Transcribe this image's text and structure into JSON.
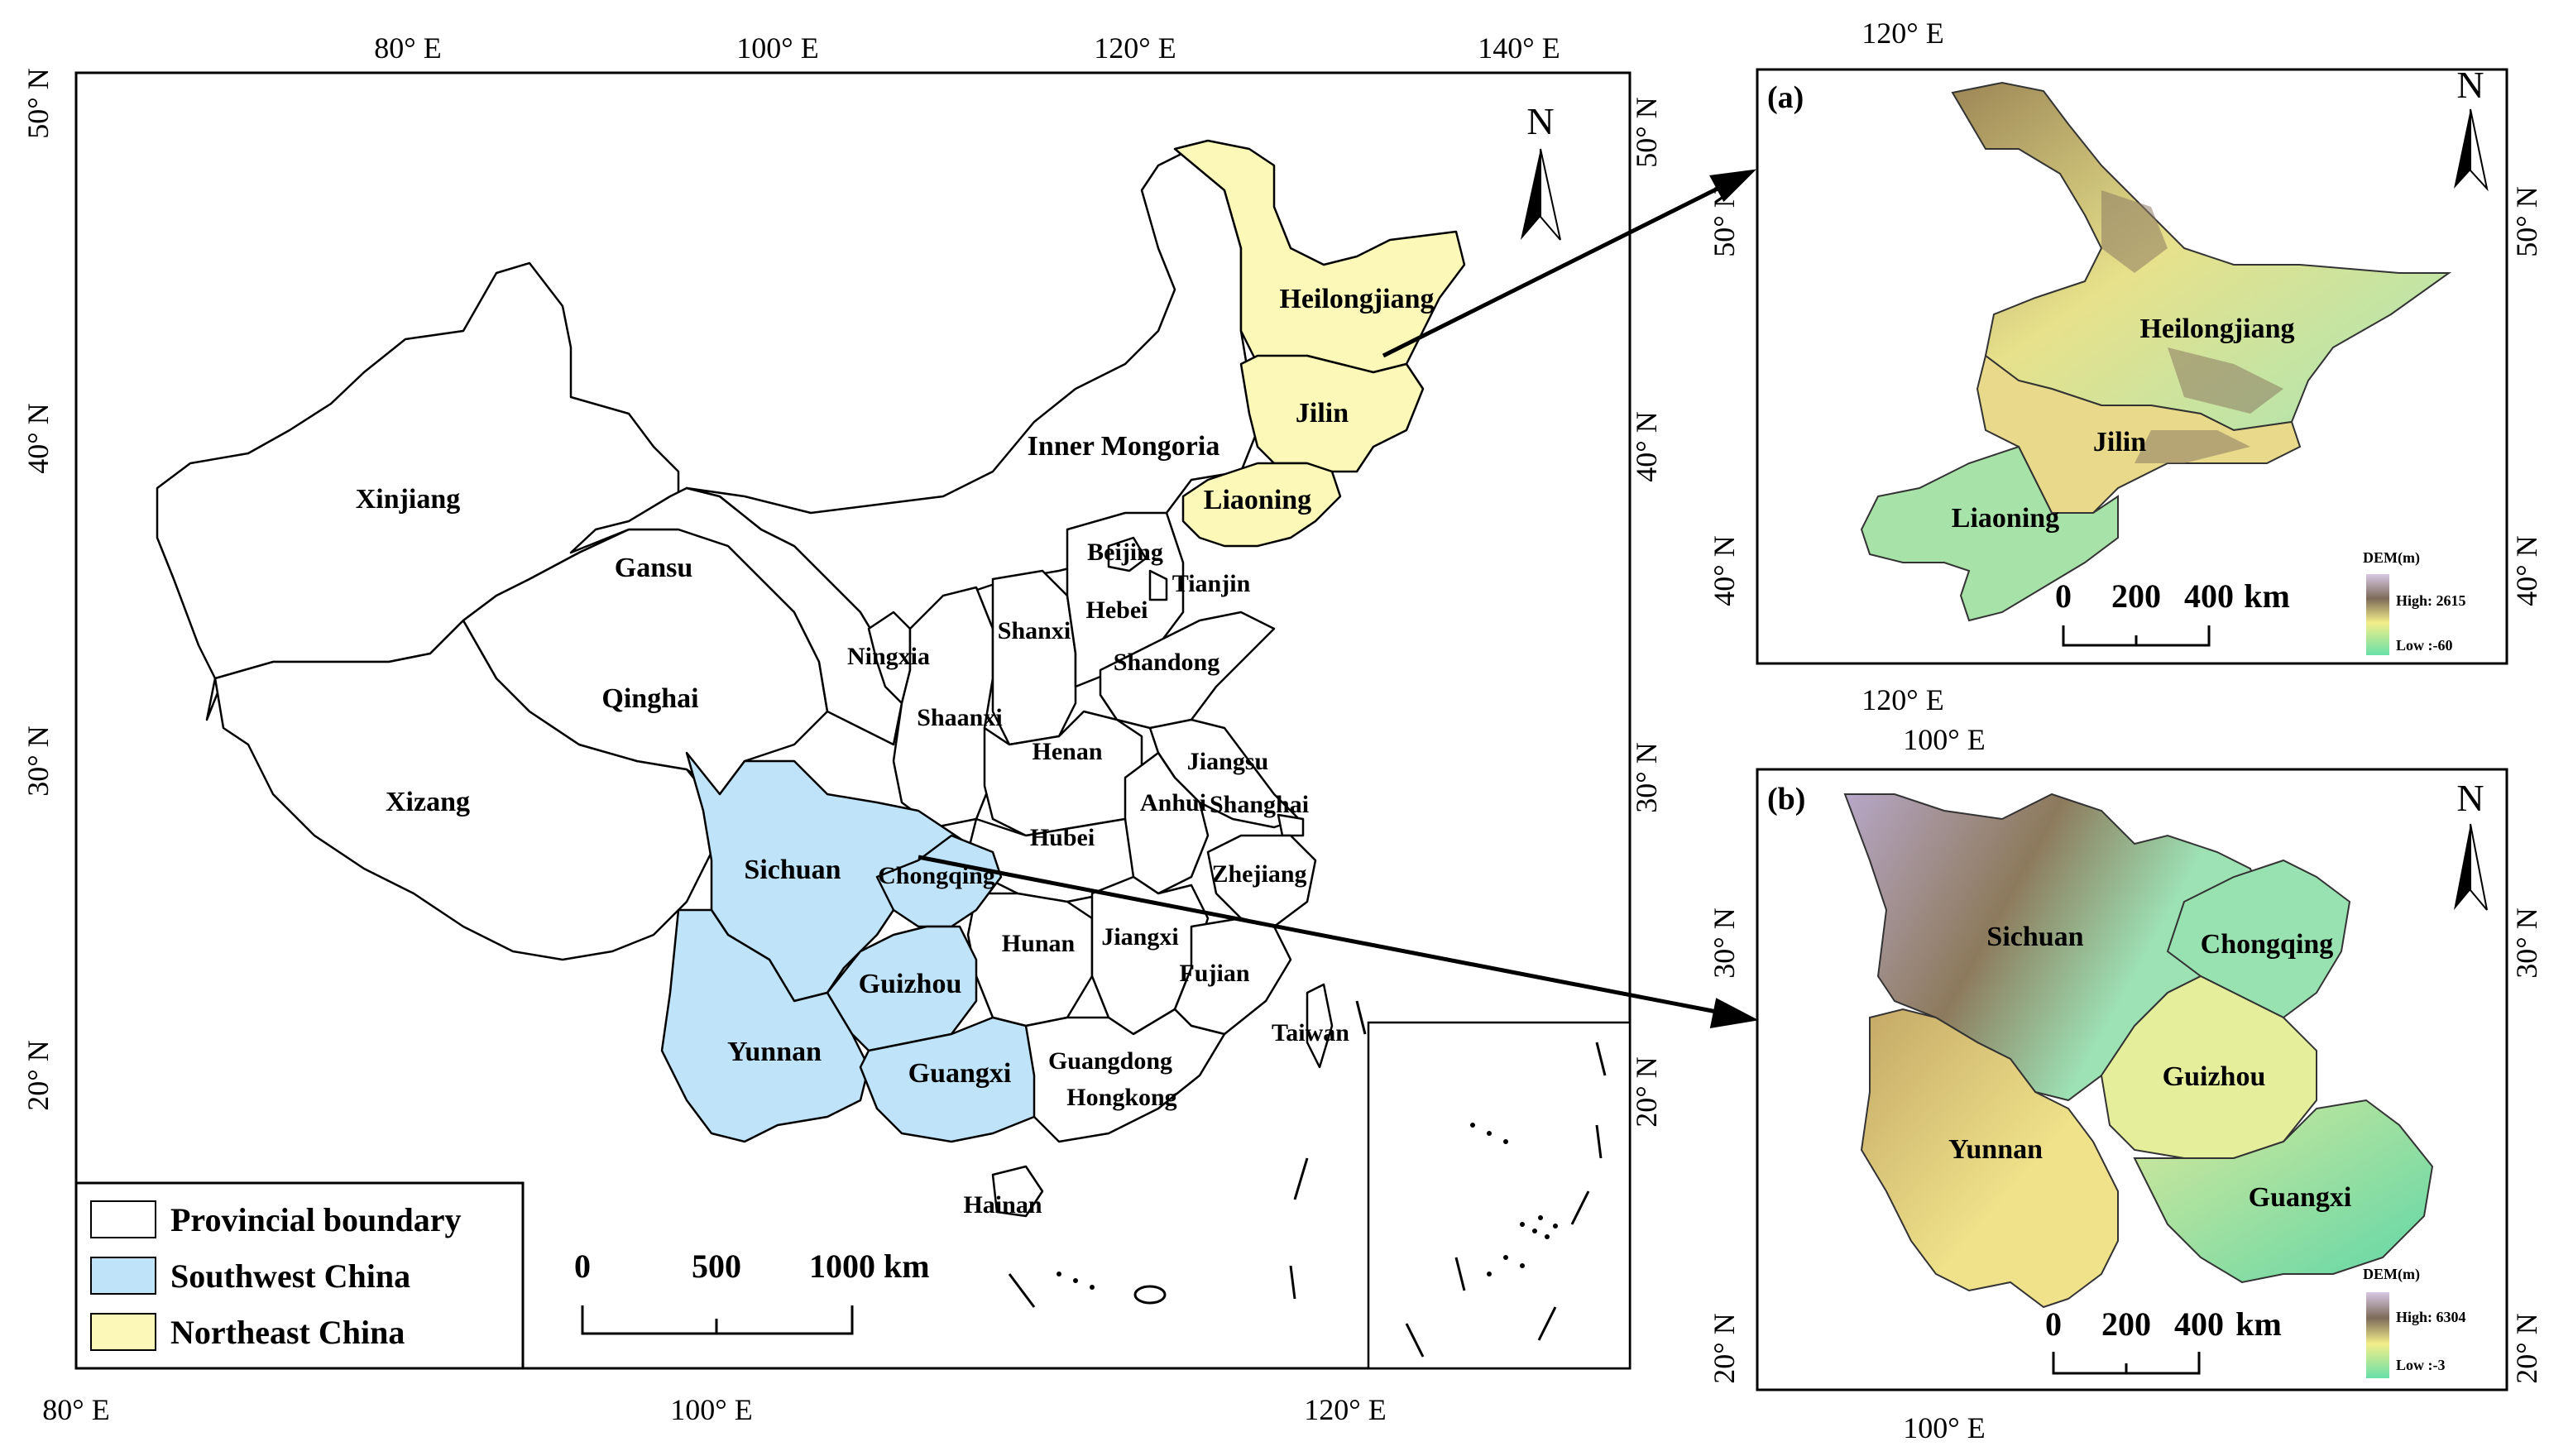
{
  "main_map": {
    "top_lon_ticks": [
      "80° E",
      "100° E",
      "120° E",
      "140° E"
    ],
    "bottom_lon_ticks": [
      "80° E",
      "100° E",
      "120° E"
    ],
    "left_lat_ticks": [
      "50° N",
      "40° N",
      "30° N",
      "20° N"
    ],
    "right_lat_ticks": [
      "50° N",
      "40° N",
      "30° N",
      "20° N"
    ],
    "north_label": "N",
    "provinces": {
      "heilongjiang": "Heilongjiang",
      "jilin": "Jilin",
      "liaoning": "Liaoning",
      "inner_mongoria": "Inner Mongoria",
      "xinjiang": "Xinjiang",
      "gansu": "Gansu",
      "qinghai": "Qinghai",
      "xizang": "Xizang",
      "beijing": "Beijing",
      "tianjin": "Tianjin",
      "hebei": "Hebei",
      "shanxi": "Shanxi",
      "shandong": "Shandong",
      "ningxia": "Ningxia",
      "shaanxi": "Shaanxi",
      "henan": "Henan",
      "jiangsu": "Jiangsu",
      "anhui": "Anhui",
      "shanghai": "Shanghai",
      "sichuan": "Sichuan",
      "chongqing": "Chongqing",
      "hubei": "Hubei",
      "zhejiang": "Zhejiang",
      "hunan": "Hunan",
      "jiangxi": "Jiangxi",
      "guizhou": "Guizhou",
      "fujian": "Fujian",
      "taiwan": "Taiwan",
      "yunnan": "Yunnan",
      "guangxi": "Guangxi",
      "guangdong": "Guangdong",
      "hongkong": "Hongkong",
      "hainan": "Hainan"
    },
    "legend": [
      {
        "label": "Provincial boundary",
        "color": "#ffffff"
      },
      {
        "label": "Southwest China",
        "color": "#bfe3f9"
      },
      {
        "label": "Northeast China",
        "color": "#fbf8b8"
      }
    ],
    "scale_bar": {
      "labels": [
        "0",
        "500",
        "1000  km"
      ]
    }
  },
  "panel_a": {
    "label": "(a)",
    "top_tick": "120° E",
    "bottom_tick": "120° E",
    "left_ticks": [
      "50° N",
      "40° N"
    ],
    "right_ticks": [
      "50° N",
      "40° N"
    ],
    "north_label": "N",
    "provinces": [
      "Heilongjiang",
      "Jilin",
      "Liaoning"
    ],
    "scale_labels": [
      "0",
      "200",
      "400",
      "km"
    ],
    "dem_title": "DEM(m)",
    "dem_high": "High: 2615",
    "dem_low": "Low :-60"
  },
  "panel_b": {
    "label": "(b)",
    "top_tick": "100° E",
    "bottom_tick": "100° E",
    "left_ticks": [
      "30° N",
      "20° N"
    ],
    "right_ticks": [
      "30° N",
      "20° N"
    ],
    "north_label": "N",
    "provinces": [
      "Sichuan",
      "Chongqing",
      "Guizhou",
      "Yunnan",
      "Guangxi"
    ],
    "scale_labels": [
      "0",
      "200",
      "400",
      "km"
    ],
    "dem_title": "DEM(m)",
    "dem_high": "High: 6304",
    "dem_low": "Low :-3"
  },
  "colors": {
    "southwest": "#bfe3f9",
    "northeast": "#fbf8b8",
    "dem_low": "#6fe0a4",
    "dem_mid": "#f0ef8c",
    "dem_brown": "#8b6a3a",
    "dem_high": "#c9b3d6"
  }
}
